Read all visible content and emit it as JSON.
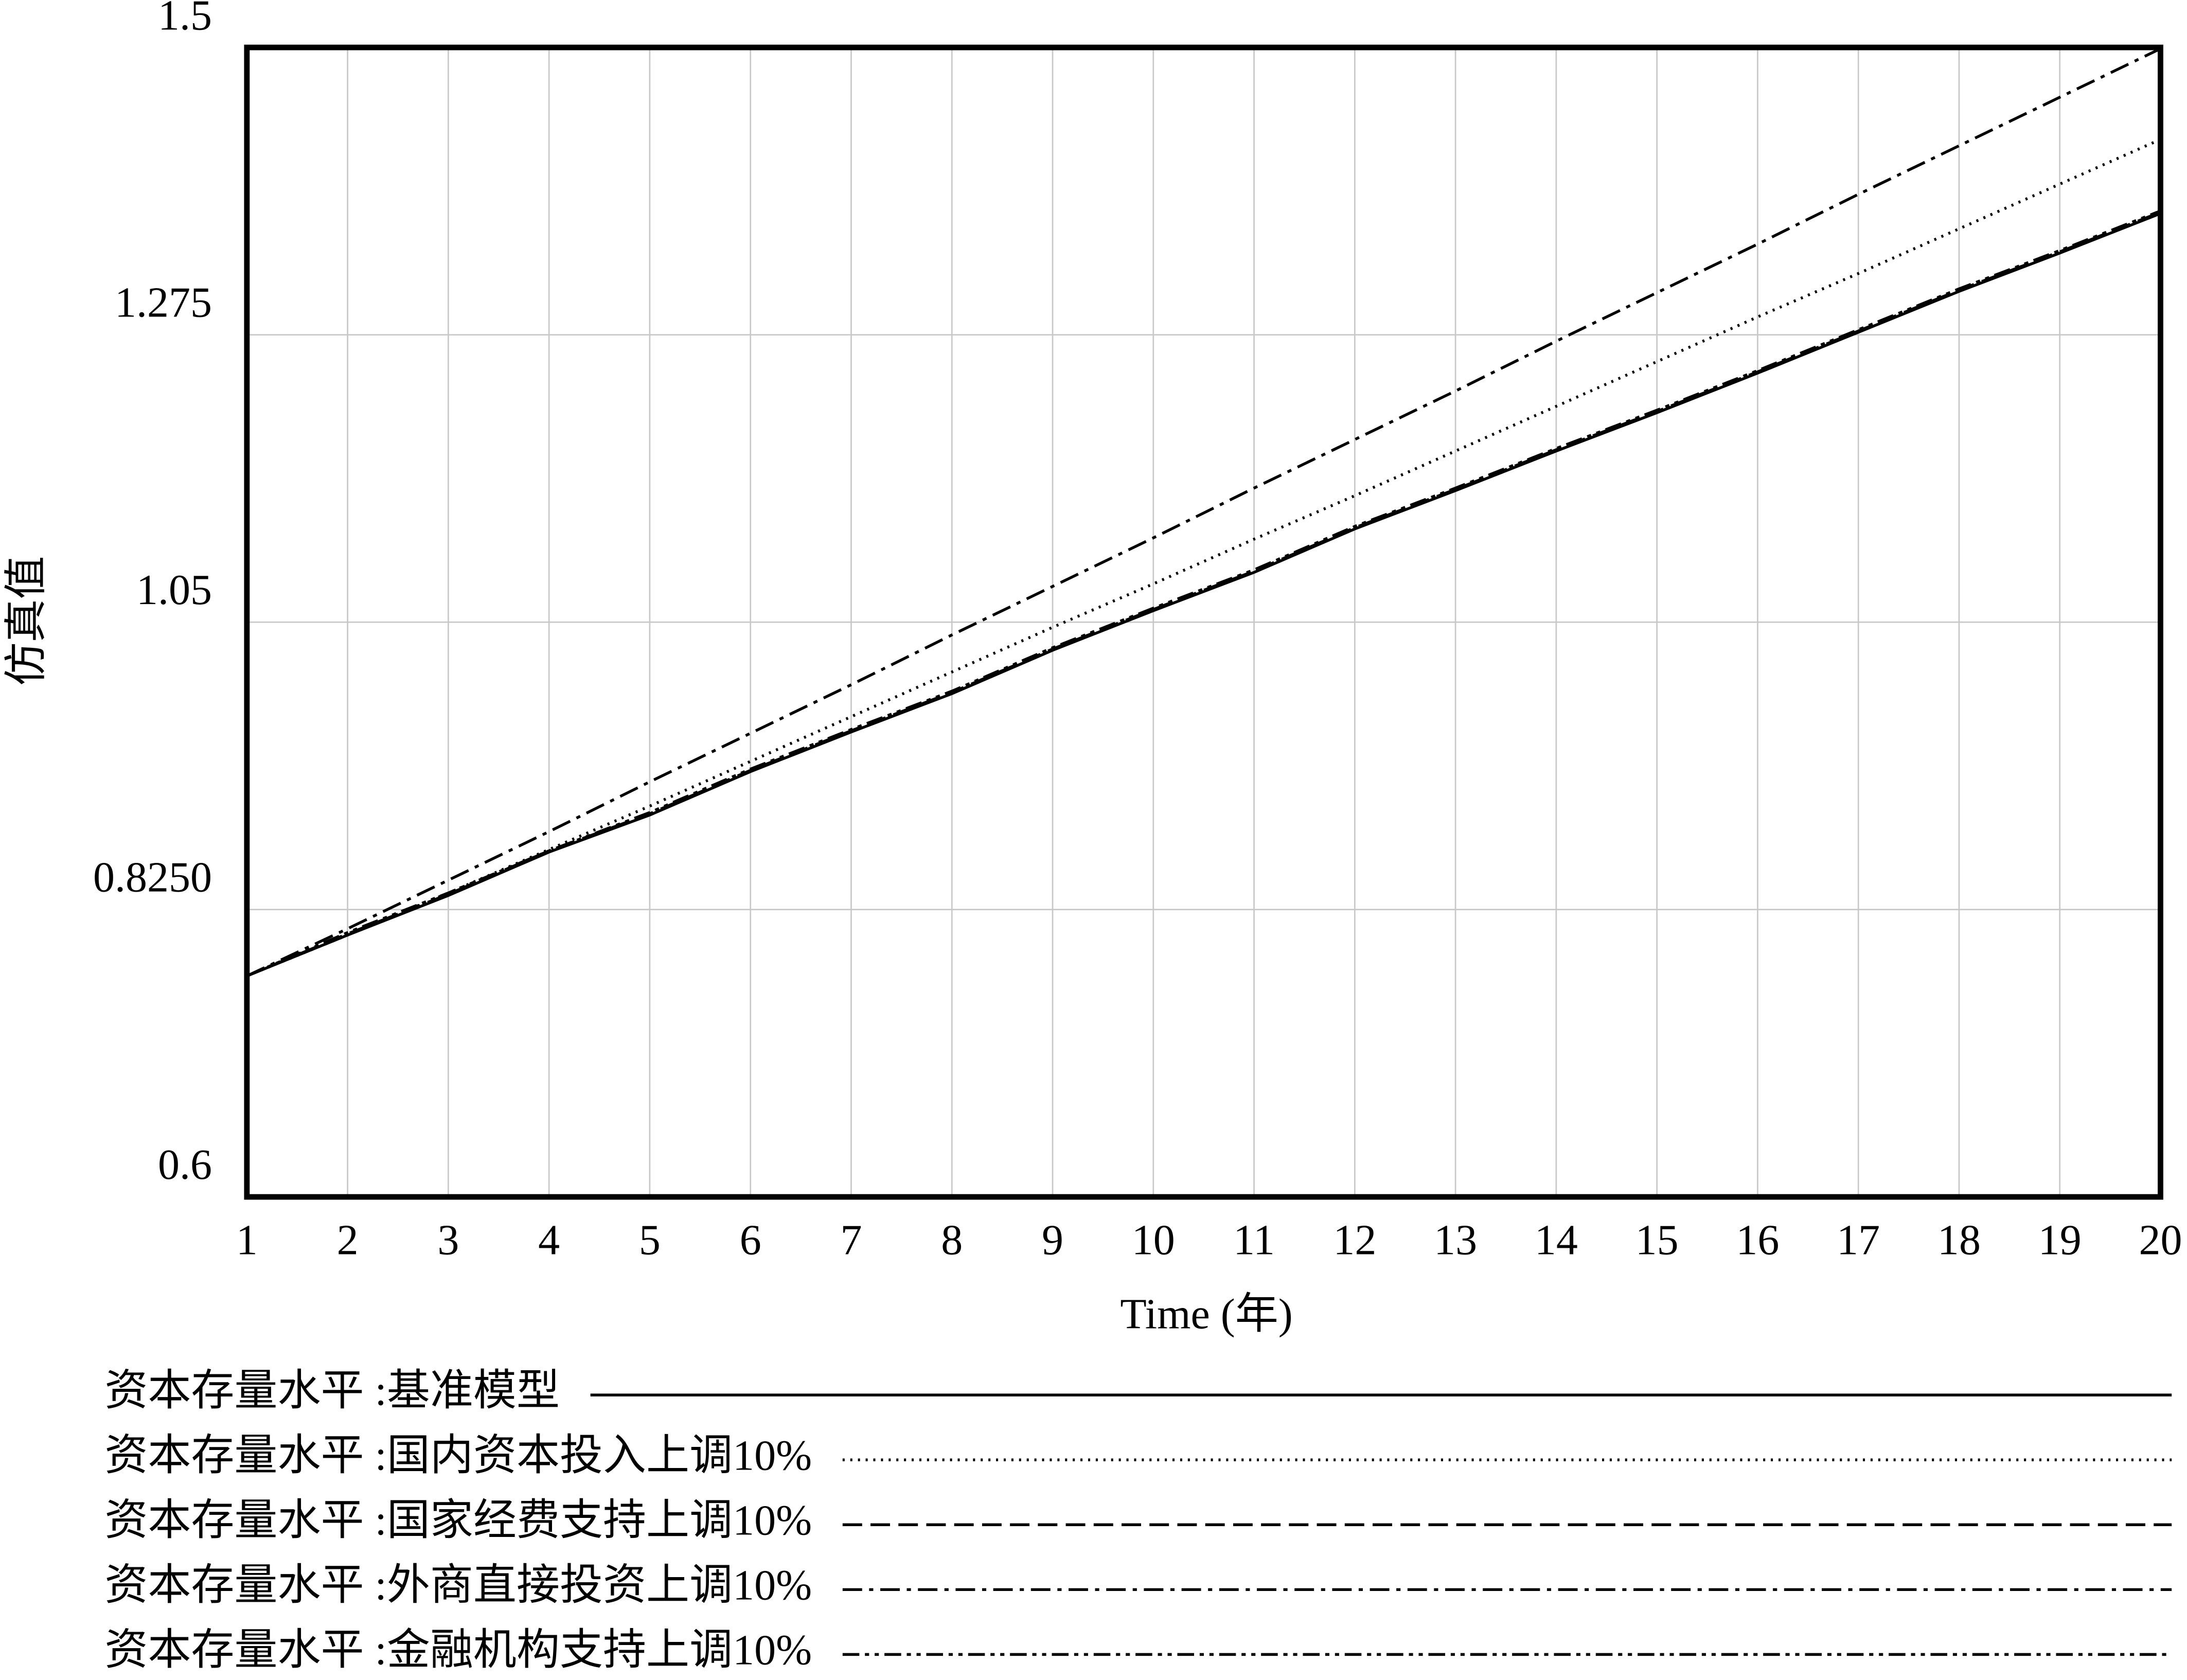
{
  "chart_data": {
    "type": "line",
    "x_label": "Time (年)",
    "y_label": "仿真值",
    "x": [
      1,
      2,
      3,
      4,
      5,
      6,
      7,
      8,
      9,
      10,
      11,
      12,
      13,
      14,
      15,
      16,
      17,
      18,
      19,
      20
    ],
    "xlim": [
      1,
      20
    ],
    "xticks": [
      1,
      2,
      3,
      4,
      5,
      6,
      7,
      8,
      9,
      10,
      11,
      12,
      13,
      14,
      15,
      16,
      17,
      18,
      19,
      20
    ],
    "ylim": [
      0.6,
      1.5
    ],
    "yticks": [
      0.6,
      {
        "value": 0.825,
        "label": "0.8250"
      },
      1.05,
      1.275,
      1.5
    ],
    "grid": true,
    "series": [
      {
        "name": "资本存量水平 :基准模型",
        "color": "#000000",
        "dash": "solid",
        "values": [
          0.773,
          0.805,
          0.836,
          0.87,
          0.899,
          0.933,
          0.964,
          0.994,
          1.028,
          1.059,
          1.089,
          1.123,
          1.153,
          1.184,
          1.214,
          1.245,
          1.277,
          1.309,
          1.339,
          1.37
        ]
      },
      {
        "name": "资本存量水平 :国内资本投入上调10%",
        "color": "#000000",
        "dash": "dotted",
        "values": [
          0.773,
          0.805,
          0.838,
          0.872,
          0.906,
          0.941,
          0.976,
          1.011,
          1.046,
          1.08,
          1.115,
          1.149,
          1.184,
          1.219,
          1.254,
          1.289,
          1.323,
          1.358,
          1.393,
          1.428
        ]
      },
      {
        "name": "资本存量水平 :国家经费支持上调10%",
        "color": "#000000",
        "dash": "dashed",
        "values": [
          0.773,
          0.806,
          0.837,
          0.871,
          0.9,
          0.934,
          0.965,
          0.995,
          1.029,
          1.06,
          1.09,
          1.124,
          1.154,
          1.185,
          1.215,
          1.246,
          1.278,
          1.31,
          1.34,
          1.371
        ]
      },
      {
        "name": "资本存量水平 :外商直接投资上调10%",
        "color": "#000000",
        "dash": "dashdot",
        "values": [
          0.773,
          0.81,
          0.848,
          0.886,
          0.925,
          0.963,
          1.001,
          1.04,
          1.078,
          1.116,
          1.155,
          1.193,
          1.231,
          1.27,
          1.308,
          1.346,
          1.385,
          1.423,
          1.461,
          1.499
        ]
      },
      {
        "name": "资本存量水平 :金融机构支持上调10%",
        "color": "#000000",
        "dash": "dashdotdot",
        "values": [
          0.773,
          0.807,
          0.838,
          0.871,
          0.901,
          0.935,
          0.966,
          0.996,
          1.03,
          1.061,
          1.091,
          1.125,
          1.155,
          1.186,
          1.216,
          1.247,
          1.279,
          1.311,
          1.341,
          1.372
        ]
      }
    ]
  }
}
